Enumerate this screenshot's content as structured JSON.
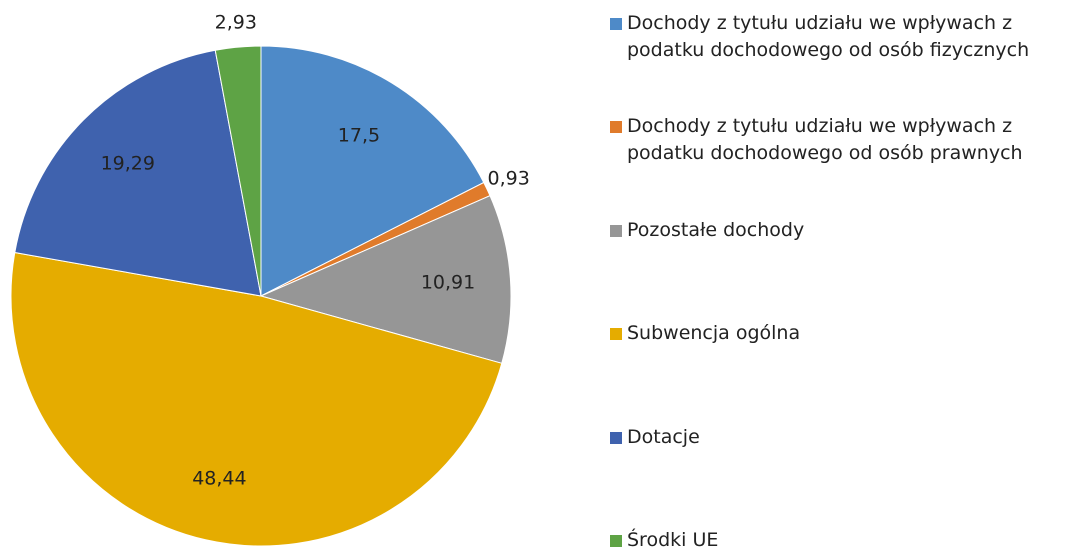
{
  "chart_data": {
    "type": "pie",
    "categories": [
      "Dochody z tytułu udziału we wpływach z podatku dochodowego od osób fizycznych",
      "Dochody z tytułu udziału we wpływach z podatku dochodowego od osób prawnych",
      "Pozostałe dochody",
      "Subwencja ogólna",
      "Dotacje",
      "Środki UE"
    ],
    "values": [
      17.5,
      0.93,
      10.91,
      48.44,
      19.29,
      2.93
    ],
    "value_labels": [
      "17,5",
      "0,93",
      "10,91",
      "48,44",
      "19,29",
      "2,93"
    ],
    "colors": [
      "#4e8ac8",
      "#e07b2b",
      "#969696",
      "#e5ac00",
      "#3f62ae",
      "#5ea345"
    ],
    "legend": "right"
  }
}
